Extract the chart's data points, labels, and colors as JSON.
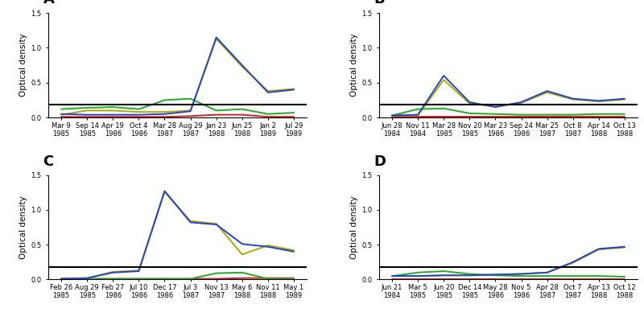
{
  "panels": [
    {
      "label": "A",
      "xtick_labels": [
        "Mar 9\n1985",
        "Sep 14\n1985",
        "Apr 19\n1986",
        "Oct 4\n1986",
        "Mar 28\n1987",
        "Aug 29\n1987",
        "Jan 23\n1988",
        "Jun 25\n1988",
        "Jan 2\n1989",
        "Jul 29\n1989"
      ],
      "n_ticks": 10,
      "blue": [
        0.05,
        0.04,
        0.04,
        0.04,
        0.05,
        0.09,
        1.15,
        0.75,
        0.36,
        0.4
      ],
      "green": [
        0.12,
        0.14,
        0.15,
        0.12,
        0.25,
        0.27,
        0.1,
        0.12,
        0.05,
        0.07
      ],
      "olive": [
        0.04,
        0.1,
        0.1,
        0.08,
        0.08,
        0.1,
        1.13,
        0.73,
        0.38,
        0.41
      ],
      "red": [
        0.01,
        0.01,
        0.01,
        0.01,
        0.01,
        0.02,
        0.04,
        0.04,
        0.01,
        0.01
      ]
    },
    {
      "label": "B",
      "xtick_labels": [
        "Jun 28\n1984",
        "Nov 11\n1984",
        "Mar 28\n1985",
        "Nov 20\n1985",
        "Mar 23\n1986",
        "Sep 24\n1986",
        "Mar 25\n1987",
        "Oct 8\n1987",
        "Apr 14\n1988",
        "Oct 13\n1988"
      ],
      "n_ticks": 10,
      "blue": [
        0.03,
        0.04,
        0.6,
        0.22,
        0.15,
        0.22,
        0.38,
        0.27,
        0.24,
        0.27
      ],
      "green": [
        0.03,
        0.12,
        0.13,
        0.06,
        0.05,
        0.04,
        0.04,
        0.04,
        0.05,
        0.05
      ],
      "olive": [
        0.03,
        0.03,
        0.54,
        0.2,
        0.16,
        0.21,
        0.36,
        0.26,
        0.23,
        0.26
      ],
      "red": [
        0.01,
        0.01,
        0.01,
        0.01,
        0.01,
        0.01,
        0.01,
        0.01,
        0.01,
        0.01
      ]
    },
    {
      "label": "C",
      "xtick_labels": [
        "Feb 26\n1985",
        "Aug 29\n1985",
        "Feb 27\n1986",
        "Jul 10\n1986",
        "Dec 17\n1986",
        "Jul 3\n1987",
        "Nov 13\n1987",
        "May 6\n1988",
        "Nov 11\n1988",
        "May 1\n1989"
      ],
      "n_ticks": 10,
      "blue": [
        0.01,
        0.02,
        0.1,
        0.12,
        1.27,
        0.82,
        0.79,
        0.51,
        0.47,
        0.4
      ],
      "green": [
        0.01,
        0.01,
        0.01,
        0.01,
        0.01,
        0.01,
        0.09,
        0.1,
        0.01,
        0.01
      ],
      "olive": [
        0.01,
        0.02,
        0.11,
        0.13,
        1.26,
        0.84,
        0.8,
        0.36,
        0.49,
        0.42
      ],
      "red": [
        0.01,
        0.01,
        0.01,
        0.01,
        0.01,
        0.01,
        0.01,
        0.02,
        0.02,
        0.02
      ]
    },
    {
      "label": "D",
      "xtick_labels": [
        "Jun 21\n1984",
        "Mar 5\n1985",
        "Jun 20\n1985",
        "Dec 14\n1985",
        "May 28\n1986",
        "Nov 5\n1986",
        "Apr 28\n1987",
        "Oct 7\n1987",
        "Apr 13\n1988",
        "Oct 12\n1988"
      ],
      "n_ticks": 10,
      "blue": [
        0.05,
        0.05,
        0.06,
        0.06,
        0.07,
        0.08,
        0.1,
        0.25,
        0.44,
        0.47
      ],
      "green": [
        0.05,
        0.1,
        0.12,
        0.08,
        0.06,
        0.05,
        0.05,
        0.05,
        0.05,
        0.04
      ],
      "olive": [
        0.05,
        0.05,
        0.06,
        0.06,
        0.07,
        0.08,
        0.1,
        0.24,
        0.43,
        0.46
      ],
      "red": [
        0.01,
        0.01,
        0.01,
        0.01,
        0.01,
        0.01,
        0.01,
        0.01,
        0.01,
        0.01
      ]
    }
  ],
  "ylim": [
    0,
    1.5
  ],
  "yticks": [
    0.0,
    0.5,
    1.0,
    1.5
  ],
  "threshold": 0.18,
  "ylabel": "Optical density",
  "line_colors": {
    "blue": "#2244cc",
    "green": "#22aa22",
    "olive": "#aaaa00",
    "red": "#cc2222"
  },
  "linewidth": 1.4,
  "threshold_color": "#000000",
  "threshold_lw": 1.5,
  "bg_color": "#ffffff",
  "label_fontsize": 13,
  "tick_fontsize": 6.0,
  "ylabel_fontsize": 7.5
}
